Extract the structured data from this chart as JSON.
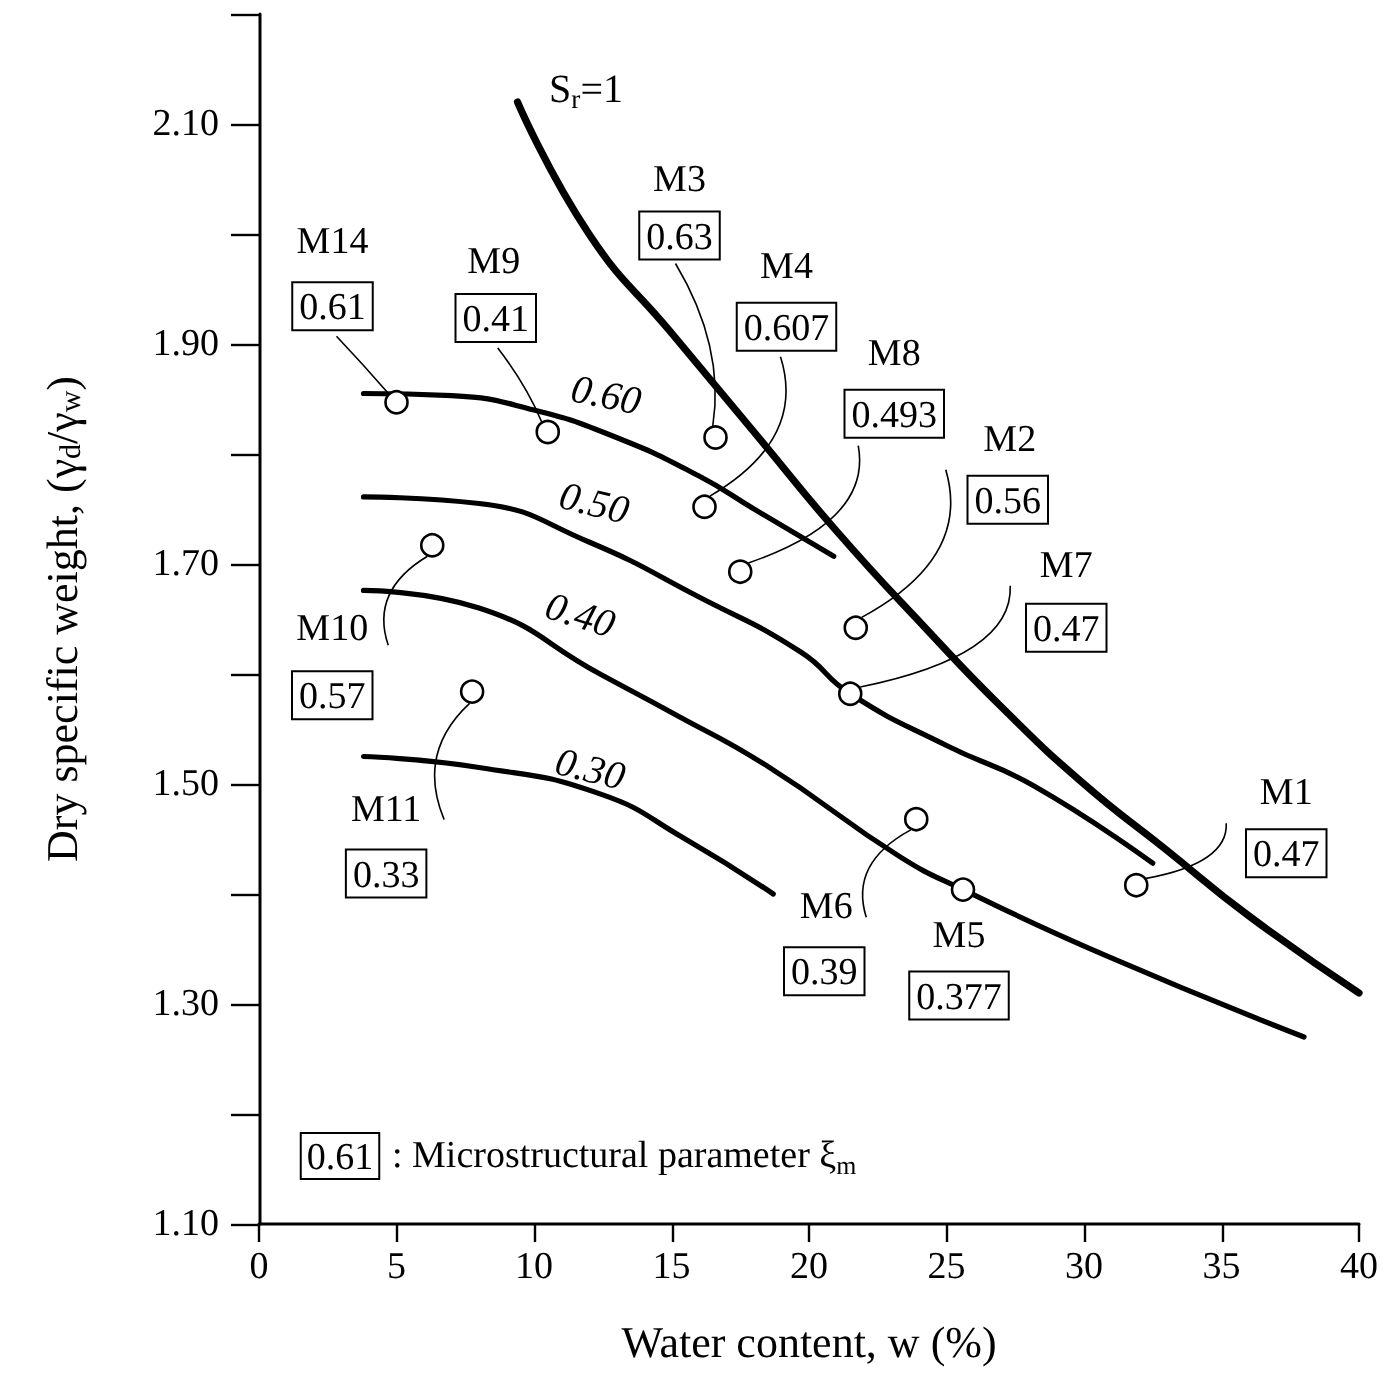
{
  "chart_data": {
    "type": "line",
    "xlabel": "Water content, w (%)",
    "ylabel": "Dry specific weight, (γ$_{d}$/γ$_{w}$)",
    "xlim": [
      0,
      40
    ],
    "ylim": [
      1.1,
      2.2
    ],
    "xticks": [
      0,
      5,
      10,
      15,
      20,
      25,
      30,
      35,
      40
    ],
    "yticks": [
      {
        "value": 1.1,
        "label": "1.10"
      },
      {
        "value": 1.2,
        "label": null
      },
      {
        "value": 1.3,
        "label": "1.30"
      },
      {
        "value": 1.4,
        "label": null
      },
      {
        "value": 1.5,
        "label": "1.50"
      },
      {
        "value": 1.6,
        "label": null
      },
      {
        "value": 1.7,
        "label": "1.70"
      },
      {
        "value": 1.8,
        "label": null
      },
      {
        "value": 1.9,
        "label": "1.90"
      },
      {
        "value": 2.0,
        "label": null
      },
      {
        "value": 2.1,
        "label": "2.10"
      },
      {
        "value": 2.2,
        "label": null
      }
    ],
    "grid": false,
    "series": [
      {
        "name": "S$_{r}$=1",
        "color": "#000000",
        "x": [
          9.4,
          12,
          15,
          18,
          21,
          24.3,
          27,
          30,
          33,
          36,
          40
        ],
        "values": [
          2.12,
          2.0,
          1.91,
          1.82,
          1.73,
          1.64,
          1.57,
          1.5,
          1.44,
          1.38,
          1.31
        ]
      },
      {
        "name": "0.60",
        "color": "#000000",
        "x": [
          3.8,
          7,
          10,
          13,
          16,
          18,
          20.9
        ],
        "values": [
          1.855,
          1.853,
          1.84,
          1.815,
          1.78,
          1.75,
          1.707
        ]
      },
      {
        "name": "0.50",
        "color": "#000000",
        "x": [
          3.8,
          8,
          12,
          16,
          19.7,
          21.5,
          25,
          28.2,
          32.5
        ],
        "values": [
          1.761,
          1.755,
          1.72,
          1.67,
          1.62,
          1.582,
          1.535,
          1.498,
          1.428
        ]
      },
      {
        "name": "0.40",
        "color": "#000000",
        "x": [
          3.8,
          8,
          12.4,
          15,
          18.5,
          23.3,
          25.6,
          30.8,
          38
        ],
        "values": [
          1.676,
          1.66,
          1.6,
          1.565,
          1.516,
          1.434,
          1.404,
          1.344,
          1.27
        ]
      },
      {
        "name": "0.30",
        "color": "#000000",
        "x": [
          3.8,
          8,
          12.4,
          15.5,
          18.7
        ],
        "values": [
          1.525,
          1.515,
          1.491,
          1.45,
          1.4
        ]
      },
      {
        "type": "scatter",
        "color": "#000000",
        "marker": "circle",
        "x": [
          5,
          10.5,
          16.6,
          16.2,
          17.5,
          6.3,
          21.7,
          21.5,
          31.9,
          25.6,
          23.9,
          7.75
        ],
        "values": [
          1.847,
          1.82,
          1.815,
          1.752,
          1.693,
          1.717,
          1.642,
          1.582,
          1.408,
          1.404,
          1.468,
          1.584
        ]
      }
    ],
    "annotations": [
      {
        "text": "0.61",
        "x": 5,
        "y": 1.847
      },
      {
        "text": "0.41",
        "x": 10.5,
        "y": 1.82
      },
      {
        "text": "0.63",
        "x": 16.6,
        "y": 1.815
      },
      {
        "text": "0.607",
        "x": 16.2,
        "y": 1.752
      },
      {
        "text": "0.493",
        "x": 17.5,
        "y": 1.693
      },
      {
        "text": "0.57",
        "x": 6.3,
        "y": 1.717
      },
      {
        "text": "0.56",
        "x": 21.7,
        "y": 1.642
      },
      {
        "text": "0.47",
        "x": 21.5,
        "y": 1.582
      },
      {
        "text": "0.47",
        "x": 31.9,
        "y": 1.408
      },
      {
        "text": "0.377",
        "x": 25.6,
        "y": 1.404
      },
      {
        "text": "0.39",
        "x": 23.9,
        "y": 1.468
      },
      {
        "text": "0.33",
        "x": 7.75,
        "y": 1.584
      },
      "M14",
      "M9",
      "M3",
      "M4",
      "M8",
      "M10",
      "M2",
      "M7",
      "M1",
      "M5",
      "M6",
      "M11",
      "0.61",
      ": Microstructural parameter ξ$_{m}$"
    ]
  }
}
